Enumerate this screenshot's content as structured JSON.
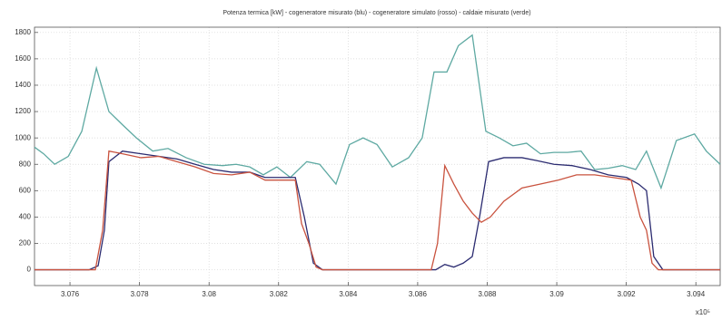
{
  "chart_data": {
    "type": "line",
    "title": "Potenza termica [kW] - cogeneratore misurato (blu) - cogeneratore simulato (rosso) - caldaie misurato (verde)",
    "x_multiplier": "x10⁵",
    "xlim": [
      3.07498,
      3.0947
    ],
    "xticks": [
      3.076,
      3.078,
      3.08,
      3.082,
      3.084,
      3.086,
      3.088,
      3.09,
      3.092,
      3.094
    ],
    "ylim": [
      -120,
      1840
    ],
    "yticks": [
      0,
      200,
      400,
      600,
      800,
      1000,
      1200,
      1400,
      1600,
      1800
    ],
    "grid": true,
    "series": [
      {
        "color": "#5ea9a2",
        "x": [
          3.07498,
          3.07524,
          3.07556,
          3.07595,
          3.07634,
          3.07676,
          3.07712,
          3.07751,
          3.07791,
          3.07838,
          3.07882,
          3.07934,
          3.07986,
          3.08039,
          3.08078,
          3.08117,
          3.08156,
          3.08195,
          3.08234,
          3.08281,
          3.08318,
          3.08365,
          3.08404,
          3.08443,
          3.08483,
          3.08527,
          3.08574,
          3.08613,
          3.08647,
          3.08684,
          3.08717,
          3.08757,
          3.08796,
          3.08835,
          3.08874,
          3.08913,
          3.08953,
          3.08992,
          3.09031,
          3.0907,
          3.09109,
          3.09148,
          3.09188,
          3.09227,
          3.09258,
          3.093,
          3.09344,
          3.09396,
          3.0943,
          3.0947
        ],
        "values": [
          930,
          880,
          800,
          860,
          1050,
          1530,
          1200,
          1100,
          1000,
          900,
          920,
          850,
          800,
          790,
          800,
          780,
          720,
          780,
          700,
          820,
          800,
          650,
          950,
          1000,
          950,
          780,
          850,
          1000,
          1500,
          1500,
          1700,
          1780,
          1050,
          1000,
          940,
          960,
          880,
          890,
          890,
          900,
          760,
          770,
          790,
          760,
          900,
          620,
          980,
          1030,
          900,
          800
        ]
      },
      {
        "color": "#2b2b70",
        "x": [
          3.07498,
          3.07655,
          3.07681,
          3.07699,
          3.07712,
          3.07751,
          3.07804,
          3.07856,
          3.07908,
          3.0796,
          3.08013,
          3.08065,
          3.08117,
          3.08161,
          3.08208,
          3.08248,
          3.08274,
          3.083,
          3.08326,
          3.08443,
          3.08652,
          3.08678,
          3.08704,
          3.08731,
          3.08757,
          3.08778,
          3.08804,
          3.08848,
          3.089,
          3.08939,
          3.08992,
          3.09044,
          3.09096,
          3.09148,
          3.09201,
          3.09235,
          3.09258,
          3.09279,
          3.09305,
          3.0947
        ],
        "values": [
          0,
          0,
          30,
          300,
          820,
          900,
          880,
          860,
          840,
          800,
          760,
          740,
          740,
          700,
          700,
          700,
          400,
          50,
          0,
          0,
          0,
          40,
          20,
          50,
          100,
          400,
          820,
          850,
          850,
          830,
          800,
          790,
          760,
          720,
          700,
          650,
          600,
          100,
          0,
          0
        ]
      },
      {
        "color": "#c9533f",
        "x": [
          3.07498,
          3.07673,
          3.07694,
          3.07712,
          3.07751,
          3.07804,
          3.07856,
          3.07908,
          3.0796,
          3.08013,
          3.08065,
          3.08117,
          3.08161,
          3.08208,
          3.08248,
          3.08266,
          3.08287,
          3.08308,
          3.08326,
          3.08639,
          3.08657,
          3.08678,
          3.08704,
          3.08731,
          3.08757,
          3.08783,
          3.08809,
          3.08848,
          3.089,
          3.08953,
          3.09005,
          3.09057,
          3.09109,
          3.09161,
          3.09214,
          3.0924,
          3.09258,
          3.09274,
          3.09292,
          3.0947
        ],
        "values": [
          0,
          0,
          300,
          900,
          880,
          850,
          860,
          820,
          780,
          730,
          720,
          740,
          680,
          680,
          680,
          350,
          200,
          20,
          0,
          0,
          200,
          790,
          650,
          520,
          430,
          360,
          400,
          520,
          620,
          650,
          680,
          720,
          720,
          700,
          680,
          400,
          300,
          50,
          0,
          0
        ]
      }
    ]
  }
}
